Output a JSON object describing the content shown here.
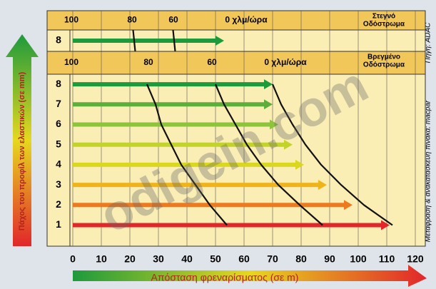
{
  "chart_data": {
    "type": "bar",
    "orientation": "horizontal",
    "y_axis_label": "Πάχος του προφίλ των ελαστικών (σε mm)",
    "x_axis_label": "Απόσταση φρεναρίσματος (σε m)",
    "credit": "Μετάφραση & ανακατασκευή πίνακα: macpar",
    "source": "Πηγή: ADAC",
    "watermark": "odigein.com",
    "xlim": [
      0,
      120
    ],
    "xticks": [
      0,
      10,
      20,
      30,
      40,
      50,
      60,
      70,
      80,
      90,
      100,
      110,
      120
    ],
    "grid": true,
    "panels": [
      {
        "title_lines": [
          "Στεγνό",
          "Οδόστρωμα"
        ],
        "speed_labels": [
          "100",
          "80",
          "60",
          "0 χλμ/ώρα"
        ],
        "categories": [
          "8"
        ],
        "values": [
          53
        ],
        "colors": [
          "#1d9a3c"
        ],
        "curves": [
          [
            21.5
          ],
          [
            35.5
          ]
        ]
      },
      {
        "title_lines": [
          "Βρεγμένο",
          "Οδόστρωμα"
        ],
        "speed_labels": [
          "100",
          "80",
          "60",
          "0 χλμ/ώρα"
        ],
        "categories": [
          "8",
          "7",
          "6",
          "5",
          "4",
          "3",
          "2",
          "1"
        ],
        "values": [
          70,
          70,
          72,
          77,
          81,
          89,
          98,
          111
        ],
        "colors": [
          "#1d9a3c",
          "#5eae3c",
          "#8dc43c",
          "#c2d42c",
          "#d9d81e",
          "#f0b41a",
          "#ee7a20",
          "#e2262a"
        ],
        "curves": [
          [
            26,
            29,
            31,
            34.5,
            38,
            43,
            48,
            54
          ],
          [
            50,
            53,
            57,
            61,
            66,
            72,
            79.5,
            87.5
          ],
          [
            70,
            73,
            77,
            81.5,
            87,
            94,
            102,
            112
          ]
        ]
      }
    ]
  }
}
